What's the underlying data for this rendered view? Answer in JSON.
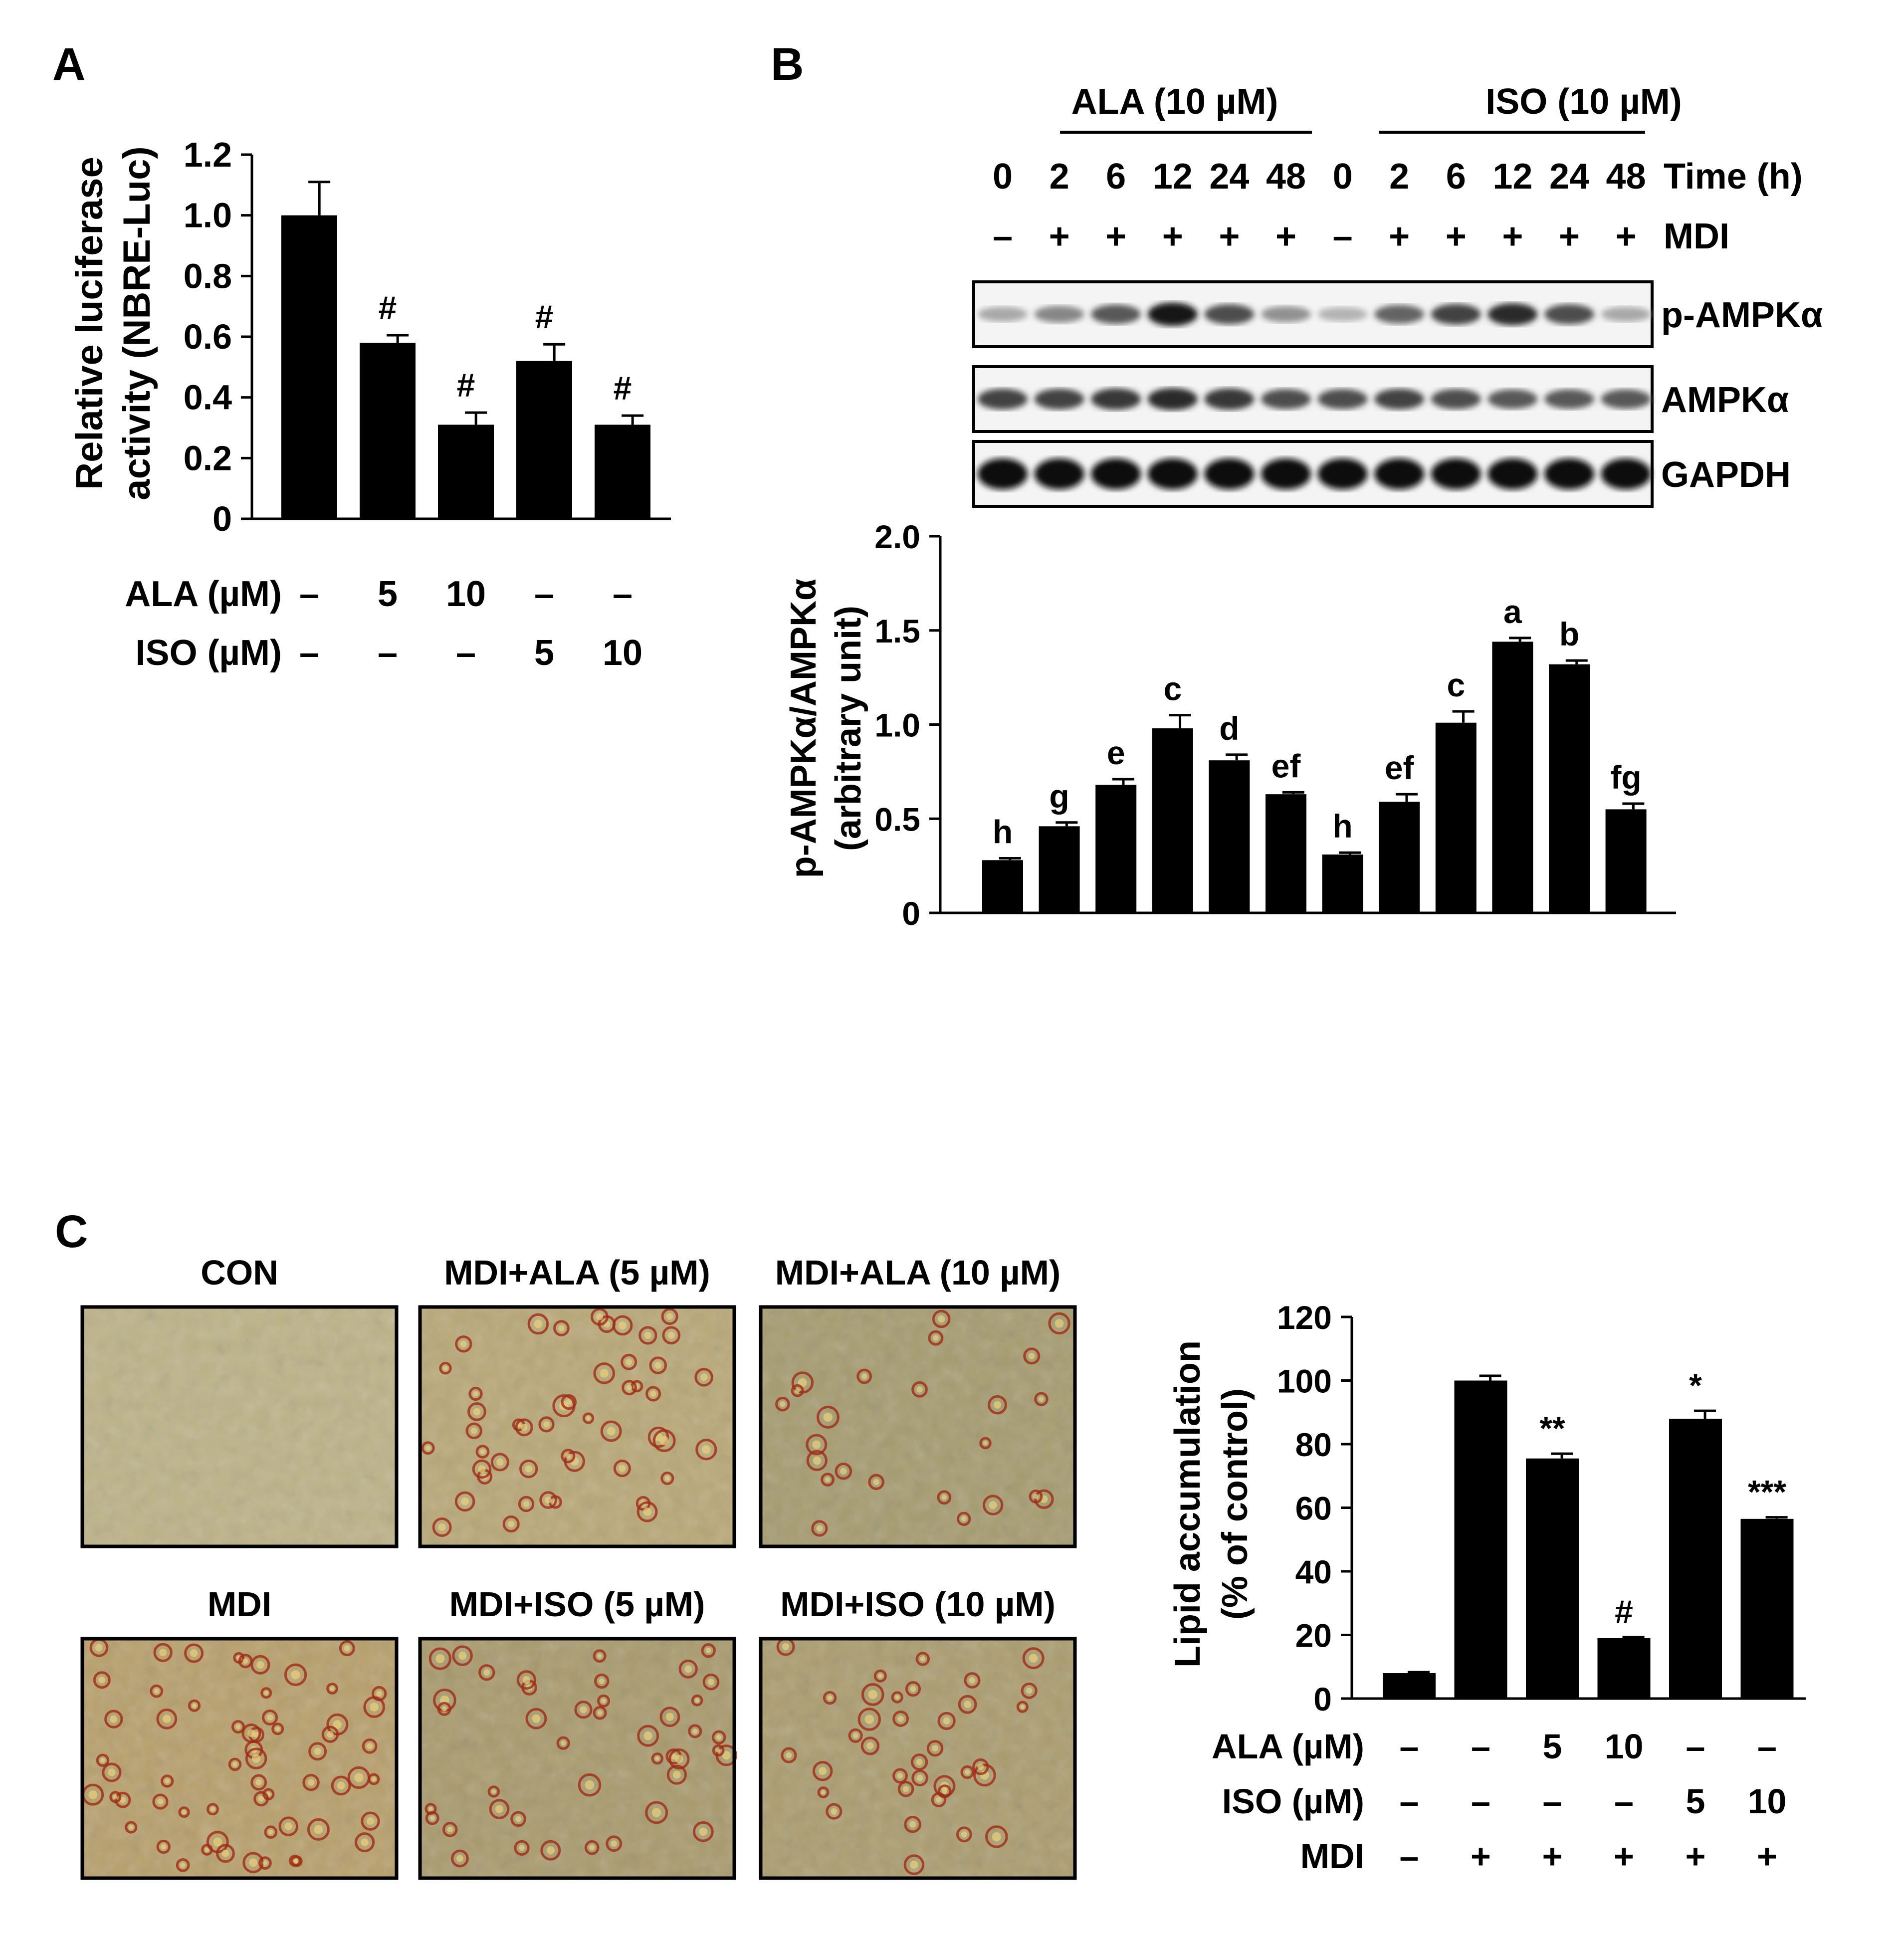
{
  "panels": {
    "A": {
      "letter": "A",
      "chart_data": {
        "type": "bar",
        "ylabel_lines": [
          "Relative luciferase",
          "activity (NBRE-Luc)"
        ],
        "ylim": [
          0,
          1.2
        ],
        "yticks": [
          "0",
          "0.2",
          "0.4",
          "0.6",
          "0.8",
          "1.0",
          "1.2"
        ],
        "ytick_values": [
          0,
          0.2,
          0.4,
          0.6,
          0.8,
          1.0,
          1.2
        ],
        "values": [
          1.0,
          0.58,
          0.31,
          0.52,
          0.31
        ],
        "errors": [
          0.11,
          0.025,
          0.04,
          0.055,
          0.03
        ],
        "annotations": [
          "",
          "#",
          "#",
          "#",
          "#"
        ],
        "rows": [
          {
            "label": "ALA (µM)",
            "values": [
              "–",
              "5",
              "10",
              "–",
              "–"
            ]
          },
          {
            "label": "ISO (µM)",
            "values": [
              "–",
              "–",
              "–",
              "5",
              "10"
            ]
          }
        ]
      }
    },
    "B": {
      "letter": "B",
      "groups": [
        "ALA (10 µM)",
        "ISO (10 µM)"
      ],
      "time_label": "Time (h)",
      "time_values": [
        "0",
        "2",
        "6",
        "12",
        "24",
        "48",
        "0",
        "2",
        "6",
        "12",
        "24",
        "48"
      ],
      "mdi_label": "MDI",
      "mdi_values": [
        "–",
        "+",
        "+",
        "+",
        "+",
        "+",
        "–",
        "+",
        "+",
        "+",
        "+",
        "+"
      ],
      "blots": [
        {
          "label": "p-AMPKα",
          "intensity": [
            0.3,
            0.45,
            0.65,
            0.95,
            0.7,
            0.4,
            0.25,
            0.6,
            0.75,
            0.85,
            0.7,
            0.3
          ]
        },
        {
          "label": "AMPKα",
          "intensity": [
            0.75,
            0.75,
            0.8,
            0.85,
            0.8,
            0.7,
            0.7,
            0.75,
            0.7,
            0.65,
            0.65,
            0.65
          ]
        },
        {
          "label": "GAPDH",
          "intensity": [
            1.0,
            1.0,
            1.0,
            1.0,
            1.0,
            1.0,
            1.0,
            1.0,
            1.0,
            1.0,
            1.0,
            1.0
          ]
        }
      ],
      "chart_data": {
        "type": "bar",
        "ylabel_lines": [
          "p-AMPKα/AMPKα",
          "(arbitrary unit)"
        ],
        "ylim": [
          0,
          2.0
        ],
        "yticks": [
          "0",
          "0.5",
          "1.0",
          "1.5",
          "2.0"
        ],
        "ytick_values": [
          0,
          0.5,
          1.0,
          1.5,
          2.0
        ],
        "values": [
          0.28,
          0.46,
          0.68,
          0.98,
          0.81,
          0.63,
          0.31,
          0.59,
          1.01,
          1.44,
          1.32,
          0.55
        ],
        "errors": [
          0.01,
          0.02,
          0.03,
          0.07,
          0.03,
          0.01,
          0.01,
          0.04,
          0.06,
          0.02,
          0.02,
          0.03
        ],
        "annotations": [
          "h",
          "g",
          "e",
          "c",
          "d",
          "ef",
          "h",
          "ef",
          "c",
          "a",
          "b",
          "fg"
        ]
      }
    },
    "C": {
      "letter": "C",
      "images": [
        {
          "label": "CON",
          "tint": "#bdb388",
          "stain": 0.0
        },
        {
          "label": "MDI+ALA (5 µM)",
          "tint": "#b9a877",
          "stain": 0.8
        },
        {
          "label": "MDI+ALA (10 µM)",
          "tint": "#a69c70",
          "stain": 0.4
        },
        {
          "label": "MDI",
          "tint": "#b8a06c",
          "stain": 1.0
        },
        {
          "label": "MDI+ISO (5 µM)",
          "tint": "#a99b6e",
          "stain": 0.7
        },
        {
          "label": "MDI+ISO (10 µM)",
          "tint": "#ab9d70",
          "stain": 0.6
        }
      ],
      "chart_data": {
        "type": "bar",
        "ylabel_lines": [
          "Lipid accumulation",
          "(% of control)"
        ],
        "ylim": [
          0,
          120
        ],
        "yticks": [
          "0",
          "20",
          "40",
          "60",
          "80",
          "100",
          "120"
        ],
        "ytick_values": [
          0,
          20,
          40,
          60,
          80,
          100,
          120
        ],
        "values": [
          8,
          100,
          75.5,
          19,
          88,
          56.5
        ],
        "errors": [
          0.3,
          1.5,
          1.5,
          0.3,
          2.5,
          0.5
        ],
        "annotations": [
          "",
          "",
          "**",
          "#",
          "*",
          "***"
        ],
        "rows": [
          {
            "label": "ALA (µM)",
            "values": [
              "–",
              "–",
              "5",
              "10",
              "–",
              "–"
            ]
          },
          {
            "label": "ISO (µM)",
            "values": [
              "–",
              "–",
              "–",
              "–",
              "5",
              "10"
            ]
          },
          {
            "label": "MDI",
            "values": [
              "–",
              "+",
              "+",
              "+",
              "+",
              "+"
            ]
          }
        ]
      }
    }
  }
}
